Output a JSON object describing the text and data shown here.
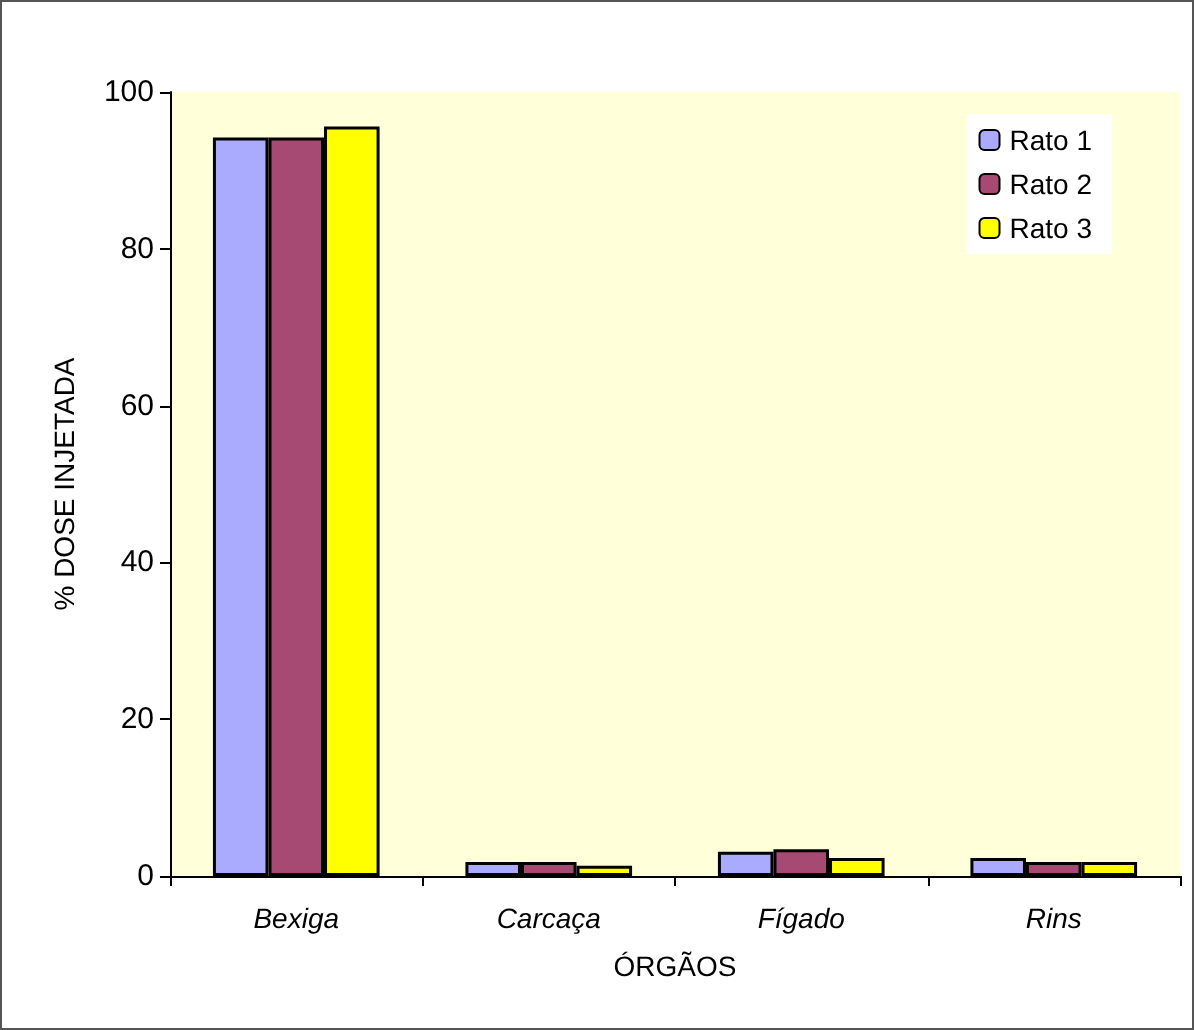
{
  "chart_data": {
    "type": "bar",
    "xlabel": "ÓRGÃOS",
    "ylabel": "% DOSE INJETADA",
    "categories": [
      "Bexiga",
      "Carcaça",
      "Fígado",
      "Rins"
    ],
    "series": [
      {
        "name": "Rato 1",
        "color": "#aaaaff",
        "values": [
          94.2,
          1.8,
          3.1,
          2.3
        ]
      },
      {
        "name": "Rato 2",
        "color": "#a64973",
        "values": [
          94.2,
          1.8,
          3.4,
          1.8
        ]
      },
      {
        "name": "Rato 3",
        "color": "#ffff00",
        "values": [
          95.6,
          1.3,
          2.3,
          1.8
        ]
      }
    ],
    "ylim": [
      0,
      100
    ],
    "yticks": [
      0,
      20,
      40,
      60,
      80,
      100
    ],
    "grid": false,
    "legend": "top right"
  }
}
